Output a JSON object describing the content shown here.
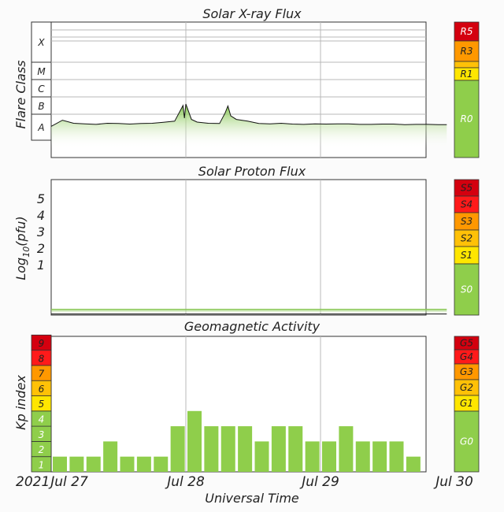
{
  "chart_data": [
    {
      "type": "line",
      "title": "Solar X-ray Flux",
      "ylabel": "Flare Class",
      "y_scale": "log",
      "flare_classes": [
        "X",
        "M",
        "C",
        "B",
        "A"
      ],
      "scale_labels": [
        "R5",
        "R3",
        "R1",
        "R0"
      ],
      "x_range": [
        "2021-07-27 00:00",
        "2021-07-30 00:00"
      ],
      "series": [
        {
          "x": [
            "2021-07-27 00:00",
            "2021-07-27 02:00",
            "2021-07-27 04:00",
            "2021-07-27 06:00",
            "2021-07-27 08:00",
            "2021-07-27 10:00",
            "2021-07-27 12:00",
            "2021-07-27 14:00",
            "2021-07-27 16:00",
            "2021-07-27 18:00",
            "2021-07-27 20:00",
            "2021-07-27 22:00",
            "2021-07-27 23:30",
            "2021-07-27 23:45",
            "2021-07-28 00:00",
            "2021-07-28 01:00",
            "2021-07-28 02:00",
            "2021-07-28 04:00",
            "2021-07-28 06:00",
            "2021-07-28 07:00",
            "2021-07-28 07:30",
            "2021-07-28 08:00",
            "2021-07-28 09:00",
            "2021-07-28 11:00",
            "2021-07-28 13:00",
            "2021-07-28 15:00",
            "2021-07-28 17:00",
            "2021-07-28 19:00",
            "2021-07-28 21:00",
            "2021-07-28 23:00",
            "2021-07-29 01:00",
            "2021-07-29 03:00",
            "2021-07-29 05:00",
            "2021-07-29 07:00",
            "2021-07-29 09:00",
            "2021-07-29 11:00",
            "2021-07-29 13:00",
            "2021-07-29 15:00",
            "2021-07-29 17:00",
            "2021-07-29 19:00",
            "2021-07-29 21:00",
            "2021-07-29 22:30"
          ],
          "flux": [
            2e-08,
            4.5e-08,
            3e-08,
            2.8e-08,
            2.6e-08,
            3e-08,
            2.9e-08,
            2.7e-08,
            2.9e-08,
            3e-08,
            3.4e-08,
            4e-08,
            3.2e-07,
            6e-08,
            3.9e-07,
            5e-08,
            3.5e-08,
            3e-08,
            2.9e-08,
            1.2e-07,
            3e-07,
            8e-08,
            5e-08,
            4e-08,
            2.9e-08,
            2.8e-08,
            3e-08,
            2.7e-08,
            2.6e-08,
            2.8e-08,
            2.7e-08,
            2.8e-08,
            2.8e-08,
            2.6e-08,
            2.6e-08,
            2.7e-08,
            2.7e-08,
            2.5e-08,
            2.6e-08,
            2.6e-08,
            2.5e-08,
            2.5e-08
          ]
        }
      ]
    },
    {
      "type": "line",
      "title": "Solar Proton Flux",
      "ylabel": "Log10(pfu)",
      "ylabel_main": "Log",
      "ylabel_sub": "10",
      "ylabel_tail": "(pfu)",
      "yticks": [
        "1",
        "2",
        "3",
        "4",
        "5"
      ],
      "ylim": [
        -0.55,
        6
      ],
      "scale_labels": [
        "S5",
        "S4",
        "S3",
        "S2",
        "S1",
        "S0"
      ],
      "series": [
        {
          "x": [
            "2021-07-27 00:00",
            "2021-07-27 12:00",
            "2021-07-28 00:00",
            "2021-07-28 12:00",
            "2021-07-29 00:00",
            "2021-07-29 12:00",
            "2021-07-29 22:30"
          ],
          "log_pfu": [
            -0.55,
            -0.55,
            -0.55,
            -0.55,
            -0.55,
            -0.55,
            -0.55
          ]
        }
      ]
    },
    {
      "type": "bar",
      "title": "Geomagnetic Activity",
      "ylabel": "Kp index",
      "xlabel": "Universal Time",
      "yticks": [
        "1",
        "2",
        "3",
        "4",
        "5",
        "6",
        "7",
        "8",
        "9"
      ],
      "ylim": [
        0,
        9
      ],
      "scale_labels": [
        "G5",
        "G4",
        "G3",
        "G2",
        "G1",
        "G0"
      ],
      "x_tick_labels": [
        "Jul 27",
        "Jul 28",
        "Jul 29",
        "Jul 30"
      ],
      "year_label": "2021",
      "x": [
        "2021-07-27 00:00",
        "2021-07-27 03:00",
        "2021-07-27 06:00",
        "2021-07-27 09:00",
        "2021-07-27 12:00",
        "2021-07-27 15:00",
        "2021-07-27 18:00",
        "2021-07-27 21:00",
        "2021-07-28 00:00",
        "2021-07-28 03:00",
        "2021-07-28 06:00",
        "2021-07-28 09:00",
        "2021-07-28 12:00",
        "2021-07-28 15:00",
        "2021-07-28 18:00",
        "2021-07-28 21:00",
        "2021-07-29 00:00",
        "2021-07-29 03:00",
        "2021-07-29 06:00",
        "2021-07-29 09:00",
        "2021-07-29 12:00",
        "2021-07-29 15:00",
        "2021-07-29 18:00"
      ],
      "values": [
        1,
        1,
        1,
        2,
        1,
        1,
        1,
        3,
        4,
        3,
        3,
        3,
        2,
        3,
        3,
        2,
        2,
        3,
        2,
        2,
        2,
        1,
        0
      ]
    }
  ],
  "colors": {
    "r5": "#d4000f",
    "r4": "#ff1a1a",
    "r3": "#ff9800",
    "r2": "#ffc107",
    "r1": "#ffe600",
    "r0": "#8fce4b",
    "bar": "#8fce4b",
    "bar_stroke": "#6aa836",
    "grid": "#b8b8b8",
    "frame": "#333333"
  }
}
